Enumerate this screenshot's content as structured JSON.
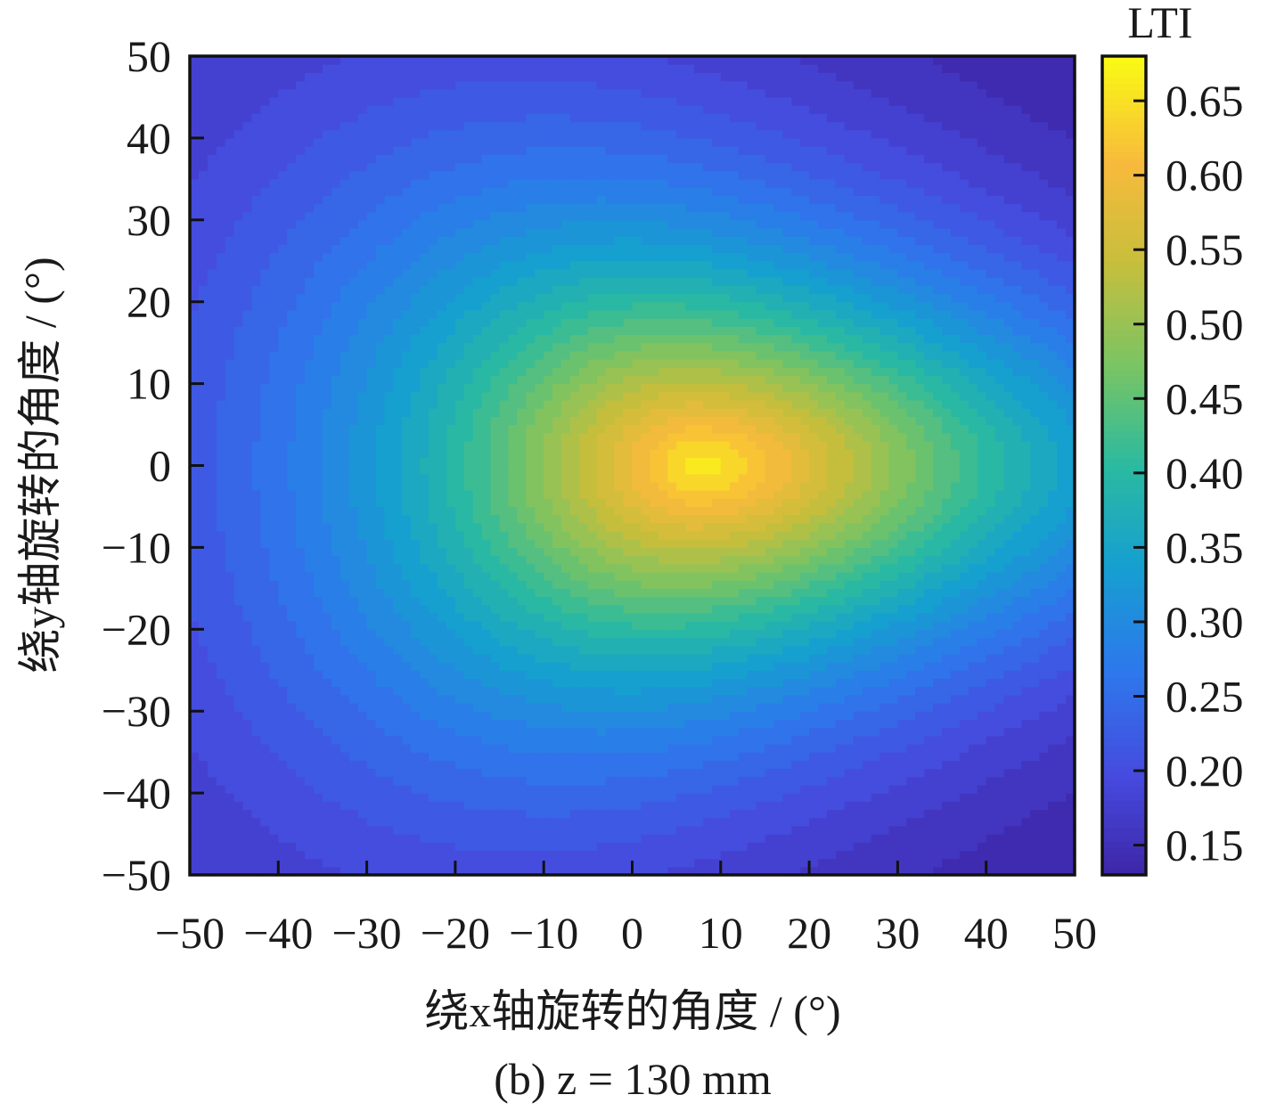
{
  "chart_data": {
    "type": "heatmap",
    "subtype": "filled-contour",
    "colorbar_title": "LTI",
    "xlabel": "绕x轴旋转的角度 / (°)",
    "ylabel": "绕y轴旋转的角度 / (°)",
    "caption": "(b) z = 130 mm",
    "xlim": [
      -50,
      50
    ],
    "ylim": [
      -50,
      50
    ],
    "x_ticks": [
      -50,
      -40,
      -30,
      -20,
      -10,
      0,
      10,
      20,
      30,
      40,
      50
    ],
    "y_ticks": [
      -50,
      -40,
      -30,
      -20,
      -10,
      0,
      10,
      20,
      30,
      40,
      50
    ],
    "x_tick_labels": [
      "−50",
      "−40",
      "−30",
      "−20",
      "−10",
      "0",
      "10",
      "20",
      "30",
      "40",
      "50"
    ],
    "y_tick_labels": [
      "−50",
      "−40",
      "−30",
      "−20",
      "−10",
      "0",
      "10",
      "20",
      "30",
      "40",
      "50"
    ],
    "colorbar": {
      "range": [
        0.13,
        0.68
      ],
      "ticks": [
        0.15,
        0.2,
        0.25,
        0.3,
        0.35,
        0.4,
        0.45,
        0.5,
        0.55,
        0.6,
        0.65
      ],
      "tick_labels": [
        "0.15",
        "0.20",
        "0.25",
        "0.30",
        "0.35",
        "0.40",
        "0.45",
        "0.50",
        "0.55",
        "0.60",
        "0.65"
      ],
      "colormap": "parula"
    },
    "peak": {
      "x": 8,
      "y": 0,
      "value": 0.67
    },
    "contour_levels": [
      0.14,
      0.16,
      0.18,
      0.2,
      0.22,
      0.24,
      0.26,
      0.28,
      0.3,
      0.32,
      0.34,
      0.36,
      0.38,
      0.4,
      0.42,
      0.44,
      0.46,
      0.48,
      0.5,
      0.52,
      0.54,
      0.56,
      0.58,
      0.6,
      0.62,
      0.64,
      0.66
    ],
    "grid": false
  }
}
